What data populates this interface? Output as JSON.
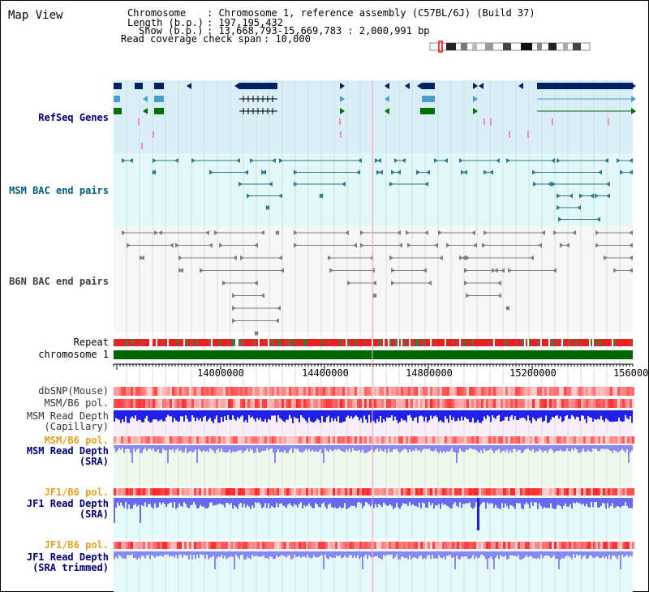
{
  "view_title": "Map View",
  "info": {
    "chrom_label": "Chromosome",
    "chrom_value": ": Chromosome 1, reference assembly (C57BL/6J) (Build 37)",
    "length_label": "Length (b.p.)",
    "length_value": ": 197,195,432",
    "show_label": "Show (b.p.)",
    "show_value": ": 13,668,793-15,669,783 : 2,000,991 bp",
    "span_label": "Read coverage check span",
    "span_value": ": 10,000"
  },
  "tracks": {
    "refseq": "RefSeq Genes",
    "msm_bac": "MSM BAC end pairs",
    "b6n_bac": "B6N BAC end pairs",
    "repeat": "Repeat",
    "chromosome": "chromosome 1",
    "dbsnp": "dbSNP(Mouse)",
    "msm_pol_1": "MSM/B6 pol.",
    "msm_depth_cap_1": "MSM Read Depth",
    "msm_depth_cap_2": "(Capillary)",
    "msm_pol_2": "MSM/B6 pol.",
    "msm_depth_sra_1": "MSM Read Depth",
    "msm_depth_sra_2": "(SRA)",
    "jf1_pol_1": "JF1/B6 pol.",
    "jf1_depth_sra_1": "JF1 Read Depth",
    "jf1_depth_sra_2": "(SRA)",
    "jf1_pol_2": "JF1/B6 pol.",
    "jf1_depth_trim_1": "JF1 Read Depth",
    "jf1_depth_trim_2": "(SRA trimmed)"
  },
  "axis": {
    "ticks": [
      "14000000",
      "14400000",
      "14800000",
      "15200000",
      "156000"
    ]
  },
  "colors": {
    "refseq_bg": "#d8eef8",
    "msm_bg": "#e2f7f7",
    "b6n_bg": "#f8f8f8",
    "chrom_bar": "#006400",
    "refseq_label": "#000080",
    "msm_label": "#006080",
    "b6n_label": "#404040",
    "jf1_label": "#e6a020",
    "depth_label": "#000080"
  }
}
